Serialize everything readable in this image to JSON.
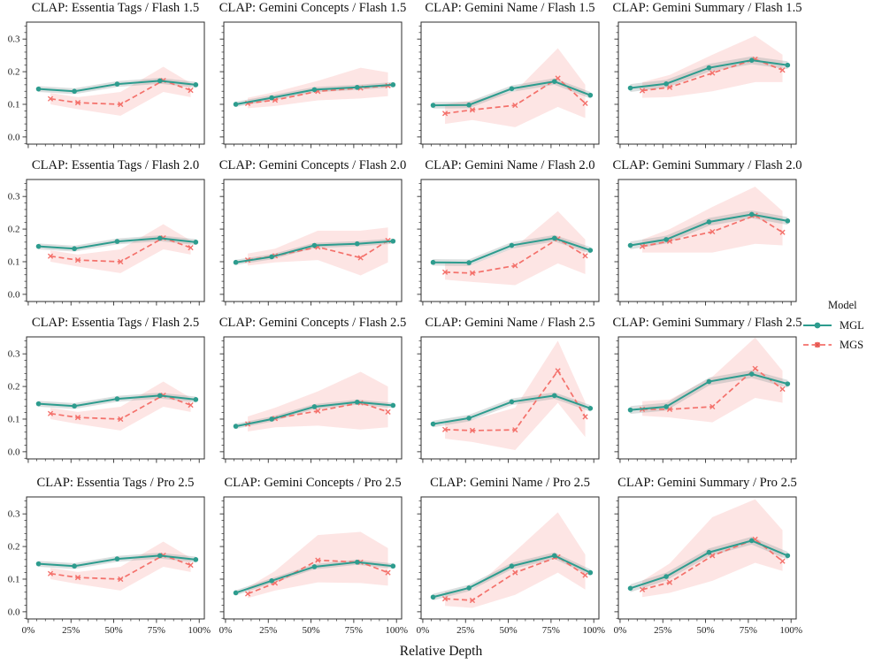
{
  "figure": {
    "xlabel": "Relative Depth"
  },
  "axes": {
    "xlim": [
      -1,
      103
    ],
    "ylim": [
      -0.022,
      0.352
    ],
    "x_ticks": [
      0,
      25,
      50,
      75,
      100
    ],
    "x_tick_labels": [
      "0%",
      "25%",
      "50%",
      "75%",
      "100%"
    ],
    "y_ticks": [
      0.0,
      0.1,
      0.2,
      0.3
    ],
    "y_tick_labels": [
      "0.0",
      "0.1",
      "0.2",
      "0.3"
    ],
    "x_minor_step": 5,
    "y_minor_step": 0.02,
    "grid": "off"
  },
  "legend": {
    "title": "Model",
    "entries": [
      {
        "label": "MGL",
        "color": "#2d9c8e",
        "line": "solid",
        "marker": "circle"
      },
      {
        "label": "MGS",
        "color": "#f4716b",
        "line": "dashed",
        "marker": "x"
      }
    ]
  },
  "series_meta": {
    "mgl": {
      "name": "MGL",
      "color": "#2d9c8e",
      "band_color": "#8f9d9b",
      "band_opacity": 0.32,
      "x": [
        6,
        27,
        52,
        77,
        98
      ]
    },
    "mgs": {
      "name": "MGS",
      "color": "#f4716b",
      "band_color": "#f4716b",
      "band_opacity": 0.18,
      "x": [
        13,
        29,
        54,
        79,
        95
      ]
    }
  },
  "chart_data": [
    {
      "type": "line",
      "title": "CLAP: Essentia Tags / Flash 1.5",
      "mgl": {
        "y": [
          0.147,
          0.14,
          0.162,
          0.172,
          0.16
        ],
        "band": 0.009
      },
      "mgs": {
        "y": [
          0.117,
          0.105,
          0.1,
          0.173,
          0.143
        ],
        "lo": [
          0.1,
          0.085,
          0.065,
          0.138,
          0.122
        ],
        "hi": [
          0.135,
          0.122,
          0.138,
          0.215,
          0.165
        ]
      }
    },
    {
      "type": "line",
      "title": "CLAP: Gemini Concepts / Flash 1.5",
      "mgl": {
        "y": [
          0.1,
          0.12,
          0.145,
          0.152,
          0.16
        ],
        "band": 0.008
      },
      "mgs": {
        "y": [
          0.103,
          0.113,
          0.14,
          0.15,
          0.157
        ],
        "lo": [
          0.088,
          0.095,
          0.112,
          0.118,
          0.125
        ],
        "hi": [
          0.12,
          0.138,
          0.172,
          0.212,
          0.198
        ]
      }
    },
    {
      "type": "line",
      "title": "CLAP: Gemini Name / Flash 1.5",
      "mgl": {
        "y": [
          0.097,
          0.098,
          0.148,
          0.17,
          0.128
        ],
        "band": 0.01
      },
      "mgs": {
        "y": [
          0.072,
          0.083,
          0.097,
          0.18,
          0.103
        ],
        "lo": [
          0.04,
          0.052,
          0.03,
          0.092,
          0.058
        ],
        "hi": [
          0.1,
          0.112,
          0.14,
          0.272,
          0.16
        ]
      }
    },
    {
      "type": "line",
      "title": "CLAP: Gemini Summary / Flash 1.5",
      "mgl": {
        "y": [
          0.15,
          0.163,
          0.212,
          0.235,
          0.22
        ],
        "band": 0.012
      },
      "mgs": {
        "y": [
          0.142,
          0.152,
          0.196,
          0.238,
          0.205
        ],
        "lo": [
          0.12,
          0.122,
          0.14,
          0.168,
          0.168
        ],
        "hi": [
          0.168,
          0.19,
          0.252,
          0.31,
          0.252
        ]
      }
    },
    {
      "type": "line",
      "title": "CLAP: Essentia Tags / Flash 2.0",
      "mgl": {
        "y": [
          0.147,
          0.14,
          0.162,
          0.172,
          0.16
        ],
        "band": 0.009
      },
      "mgs": {
        "y": [
          0.117,
          0.105,
          0.1,
          0.173,
          0.143
        ],
        "lo": [
          0.1,
          0.085,
          0.065,
          0.138,
          0.122
        ],
        "hi": [
          0.135,
          0.122,
          0.138,
          0.215,
          0.165
        ]
      }
    },
    {
      "type": "line",
      "title": "CLAP: Gemini Concepts / Flash 2.0",
      "mgl": {
        "y": [
          0.098,
          0.115,
          0.15,
          0.155,
          0.163
        ],
        "band": 0.008
      },
      "mgs": {
        "y": [
          0.105,
          0.118,
          0.145,
          0.112,
          0.165
        ],
        "lo": [
          0.088,
          0.098,
          0.105,
          0.058,
          0.098
        ],
        "hi": [
          0.125,
          0.14,
          0.195,
          0.195,
          0.205
        ]
      }
    },
    {
      "type": "line",
      "title": "CLAP: Gemini Name / Flash 2.0",
      "mgl": {
        "y": [
          0.098,
          0.097,
          0.15,
          0.172,
          0.135
        ],
        "band": 0.01
      },
      "mgs": {
        "y": [
          0.068,
          0.065,
          0.088,
          0.17,
          0.118
        ],
        "lo": [
          0.045,
          0.038,
          0.028,
          0.095,
          0.062
        ],
        "hi": [
          0.095,
          0.092,
          0.145,
          0.255,
          0.168
        ]
      }
    },
    {
      "type": "line",
      "title": "CLAP: Gemini Summary / Flash 2.0",
      "mgl": {
        "y": [
          0.15,
          0.168,
          0.222,
          0.245,
          0.225
        ],
        "band": 0.012
      },
      "mgs": {
        "y": [
          0.147,
          0.163,
          0.192,
          0.242,
          0.19
        ],
        "lo": [
          0.128,
          0.128,
          0.128,
          0.155,
          0.15
        ],
        "hi": [
          0.168,
          0.2,
          0.268,
          0.33,
          0.255
        ]
      }
    },
    {
      "type": "line",
      "title": "CLAP: Essentia Tags / Flash 2.5",
      "mgl": {
        "y": [
          0.147,
          0.14,
          0.162,
          0.172,
          0.16
        ],
        "band": 0.009
      },
      "mgs": {
        "y": [
          0.117,
          0.105,
          0.1,
          0.173,
          0.143
        ],
        "lo": [
          0.1,
          0.085,
          0.065,
          0.138,
          0.122
        ],
        "hi": [
          0.135,
          0.122,
          0.138,
          0.215,
          0.165
        ]
      }
    },
    {
      "type": "line",
      "title": "CLAP: Gemini Concepts / Flash 2.5",
      "mgl": {
        "y": [
          0.078,
          0.1,
          0.138,
          0.152,
          0.142
        ],
        "band": 0.008
      },
      "mgs": {
        "y": [
          0.085,
          0.102,
          0.125,
          0.15,
          0.122
        ],
        "lo": [
          0.062,
          0.075,
          0.08,
          0.068,
          0.075
        ],
        "hi": [
          0.108,
          0.135,
          0.185,
          0.245,
          0.2
        ]
      }
    },
    {
      "type": "line",
      "title": "CLAP: Gemini Name / Flash 2.5",
      "mgl": {
        "y": [
          0.085,
          0.103,
          0.153,
          0.172,
          0.133
        ],
        "band": 0.01
      },
      "mgs": {
        "y": [
          0.068,
          0.065,
          0.067,
          0.248,
          0.107
        ],
        "lo": [
          0.04,
          0.03,
          0.005,
          0.15,
          0.045
        ],
        "hi": [
          0.095,
          0.098,
          0.135,
          0.34,
          0.152
        ]
      }
    },
    {
      "type": "line",
      "title": "CLAP: Gemini Summary / Flash 2.5",
      "mgl": {
        "y": [
          0.128,
          0.138,
          0.215,
          0.238,
          0.208
        ],
        "band": 0.012
      },
      "mgs": {
        "y": [
          0.13,
          0.13,
          0.138,
          0.255,
          0.192
        ],
        "lo": [
          0.11,
          0.105,
          0.09,
          0.165,
          0.15
        ],
        "hi": [
          0.155,
          0.16,
          0.23,
          0.35,
          0.248
        ]
      }
    },
    {
      "type": "line",
      "title": "CLAP: Essentia Tags / Pro 2.5",
      "mgl": {
        "y": [
          0.147,
          0.14,
          0.162,
          0.172,
          0.16
        ],
        "band": 0.009
      },
      "mgs": {
        "y": [
          0.117,
          0.105,
          0.1,
          0.173,
          0.143
        ],
        "lo": [
          0.1,
          0.085,
          0.065,
          0.138,
          0.122
        ],
        "hi": [
          0.135,
          0.122,
          0.138,
          0.215,
          0.165
        ]
      }
    },
    {
      "type": "line",
      "title": "CLAP: Gemini Concepts / Pro 2.5",
      "mgl": {
        "y": [
          0.058,
          0.095,
          0.138,
          0.152,
          0.14
        ],
        "band": 0.008
      },
      "mgs": {
        "y": [
          0.055,
          0.088,
          0.158,
          0.152,
          0.12
        ],
        "lo": [
          0.042,
          0.065,
          0.09,
          0.088,
          0.08
        ],
        "hi": [
          0.075,
          0.125,
          0.235,
          0.245,
          0.195
        ]
      }
    },
    {
      "type": "line",
      "title": "CLAP: Gemini Name / Pro 2.5",
      "mgl": {
        "y": [
          0.045,
          0.073,
          0.14,
          0.172,
          0.12
        ],
        "band": 0.01
      },
      "mgs": {
        "y": [
          0.04,
          0.035,
          0.12,
          0.168,
          0.112
        ],
        "lo": [
          0.018,
          0.012,
          0.052,
          0.12,
          0.068
        ],
        "hi": [
          0.062,
          0.068,
          0.185,
          0.305,
          0.175
        ]
      }
    },
    {
      "type": "line",
      "title": "CLAP: Gemini Summary / Pro 2.5",
      "mgl": {
        "y": [
          0.072,
          0.108,
          0.182,
          0.218,
          0.172
        ],
        "band": 0.012
      },
      "mgs": {
        "y": [
          0.068,
          0.09,
          0.172,
          0.222,
          0.155
        ],
        "lo": [
          0.045,
          0.058,
          0.095,
          0.15,
          0.125
        ],
        "hi": [
          0.095,
          0.148,
          0.29,
          0.345,
          0.25
        ]
      }
    }
  ]
}
